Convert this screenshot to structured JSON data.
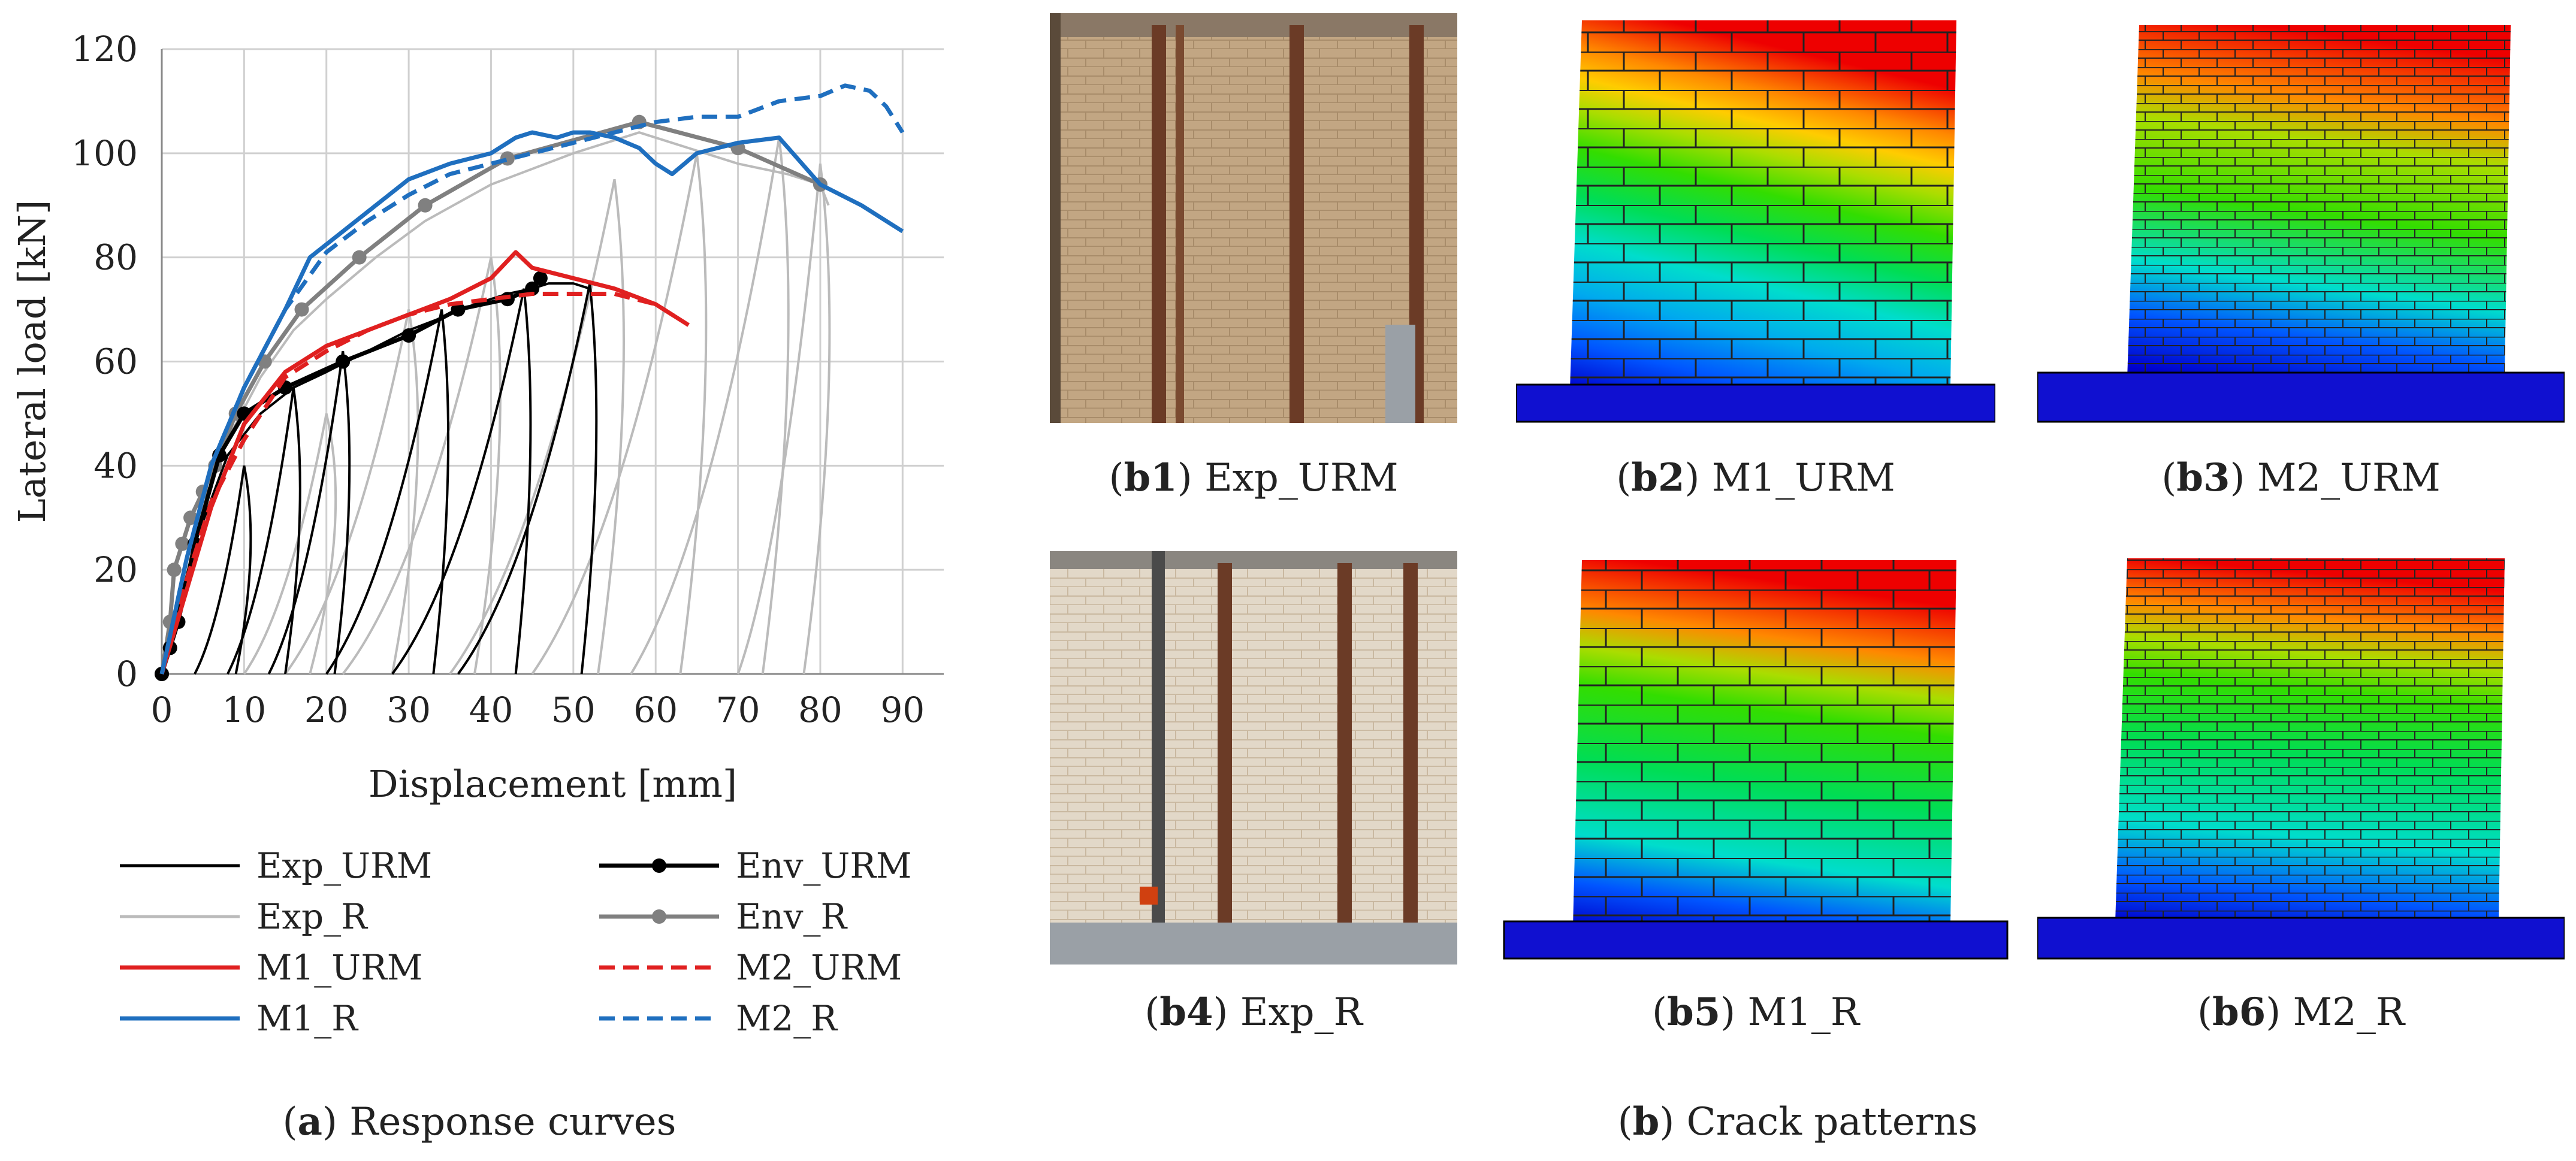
{
  "chart_data": {
    "type": "line",
    "xlabel": "Displacement [mm]",
    "ylabel": "Lateral load [kN]",
    "xlim": [
      0,
      95
    ],
    "ylim": [
      0,
      120
    ],
    "xticks": [
      0,
      10,
      20,
      30,
      40,
      50,
      60,
      70,
      80,
      90
    ],
    "yticks": [
      0,
      20,
      40,
      60,
      80,
      100,
      120
    ],
    "grid": true,
    "legend_position": "below",
    "series": [
      {
        "name": "M2_R",
        "color": "#1f6fbf",
        "dash": "dashed",
        "x": [
          0,
          3,
          6,
          10,
          15,
          20,
          25,
          30,
          35,
          40,
          45,
          50,
          55,
          60,
          65,
          70,
          75,
          80,
          83,
          86,
          88,
          90
        ],
        "y": [
          0,
          22,
          40,
          55,
          70,
          81,
          87,
          92,
          96,
          98,
          100,
          102,
          104,
          106,
          107,
          107,
          110,
          111,
          113,
          112,
          109,
          104
        ]
      },
      {
        "name": "M1_R",
        "color": "#1f6fbf",
        "dash": "solid",
        "x": [
          0,
          3,
          6,
          10,
          15,
          18,
          22,
          26,
          30,
          35,
          40,
          43,
          45,
          48,
          50,
          52,
          55,
          58,
          60,
          62,
          65,
          70,
          75,
          80,
          85,
          90
        ],
        "y": [
          0,
          22,
          40,
          55,
          70,
          80,
          85,
          90,
          95,
          98,
          100,
          103,
          104,
          103,
          104,
          104,
          103,
          101,
          98,
          96,
          100,
          102,
          103,
          94,
          90,
          85
        ]
      },
      {
        "name": "M2_URM",
        "color": "#e02020",
        "dash": "dashed",
        "x": [
          0,
          3,
          6,
          10,
          15,
          20,
          25,
          30,
          35,
          40,
          45,
          50,
          55,
          60,
          63
        ],
        "y": [
          0,
          18,
          33,
          45,
          57,
          62,
          66,
          69,
          71,
          72,
          73,
          73,
          73,
          71,
          68
        ]
      },
      {
        "name": "M1_URM",
        "color": "#e02020",
        "dash": "solid",
        "x": [
          0,
          3,
          6,
          10,
          15,
          20,
          25,
          30,
          35,
          40,
          43,
          45,
          50,
          55,
          60,
          64
        ],
        "y": [
          0,
          16,
          32,
          48,
          58,
          63,
          66,
          69,
          72,
          76,
          81,
          78,
          76,
          74,
          71,
          67
        ]
      },
      {
        "name": "Env_R",
        "color": "#808080",
        "dash": "solid",
        "marker": "circle",
        "x": [
          0,
          1,
          1.5,
          2.5,
          3.5,
          5,
          6.5,
          9,
          12.5,
          17,
          24,
          32,
          42,
          58,
          70,
          80
        ],
        "y": [
          0,
          10,
          20,
          25,
          30,
          35,
          40,
          50,
          60,
          70,
          80,
          90,
          99,
          106,
          101,
          94
        ]
      },
      {
        "name": "Env_URM",
        "color": "#000000",
        "dash": "solid",
        "marker": "circle",
        "x": [
          0,
          1,
          2,
          4,
          7,
          10,
          15,
          22,
          30,
          36,
          42,
          45,
          46
        ],
        "y": [
          0,
          5,
          10,
          25,
          42,
          50,
          55,
          60,
          65,
          70,
          72,
          74,
          76
        ]
      },
      {
        "name": "Exp_URM",
        "color": "#000000",
        "dash": "solid",
        "x": [
          0,
          4,
          8,
          12,
          16,
          20,
          25,
          30,
          35,
          38,
          42,
          45,
          47,
          50,
          52
        ],
        "y": [
          0,
          25,
          42,
          50,
          55,
          58,
          62,
          66,
          69,
          71,
          73,
          74,
          75,
          75,
          74
        ]
      },
      {
        "name": "Exp_R",
        "color": "#bbbbbb",
        "dash": "solid",
        "x": [
          0,
          4,
          8,
          12,
          16,
          20,
          26,
          32,
          40,
          50,
          58,
          66,
          70,
          76,
          80,
          81
        ],
        "y": [
          0,
          28,
          45,
          57,
          66,
          72,
          80,
          87,
          94,
          100,
          104,
          100,
          98,
          96,
          94,
          90
        ]
      }
    ],
    "legend": [
      "Exp_URM",
      "Env_URM",
      "Exp_R",
      "Env_R",
      "M1_URM",
      "M2_URM",
      "M1_R",
      "M2_R"
    ]
  },
  "captions": {
    "a": {
      "label": "a",
      "text": ") Response curves",
      "open": "("
    },
    "b": {
      "label": "b",
      "text": ") Crack patterns",
      "open": "("
    }
  },
  "panels": [
    {
      "label": "b1",
      "text": ") Exp_URM"
    },
    {
      "label": "b2",
      "text": ") M1_URM"
    },
    {
      "label": "b3",
      "text": ") M2_URM"
    },
    {
      "label": "b4",
      "text": ") Exp_R"
    },
    {
      "label": "b5",
      "text": ") M1_R"
    },
    {
      "label": "b6",
      "text": ") M2_R"
    }
  ],
  "colors": {
    "red": "#e02020",
    "blue": "#1f6fbf",
    "gray": "#808080",
    "lightgray": "#bbbbbb",
    "black": "#000000",
    "contour": [
      "#0000cc",
      "#0055ff",
      "#00aaee",
      "#00ddcc",
      "#00dd55",
      "#33dd00",
      "#aadd00",
      "#ffcc00",
      "#ff8800",
      "#ff4400",
      "#ee0000"
    ]
  }
}
